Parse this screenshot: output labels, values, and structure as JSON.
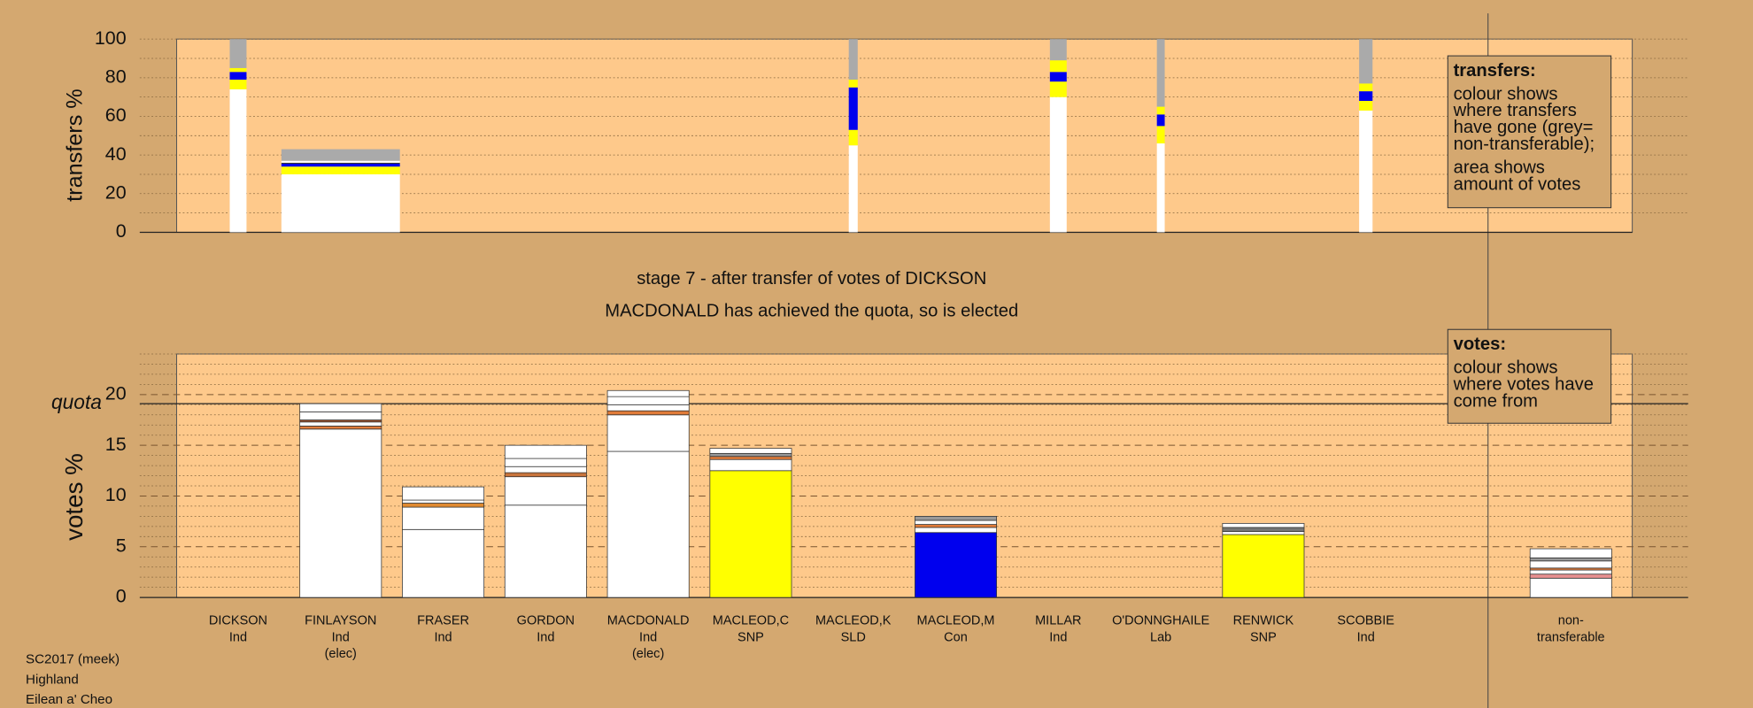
{
  "title": "stage 7 - after transfer of votes of DICKSON",
  "subtitle": "MACDONALD has achieved the quota, so is elected",
  "footer": [
    "SC2017 (meek)",
    "Highland",
    "Eilean a' Cheo"
  ],
  "chart_data": [
    {
      "type": "bar",
      "stacked": true,
      "ylabel": "transfers %",
      "ylim": [
        0,
        100
      ],
      "yticks": [
        0,
        20,
        40,
        60,
        80,
        100
      ],
      "minor_yticks": [
        10,
        30,
        50,
        70,
        90
      ],
      "stacks": [
        [
          {
            "value": 74,
            "color": "#ffffff"
          },
          {
            "value": 5,
            "color": "#ffff00"
          },
          {
            "value": 4,
            "color": "#0000ee"
          },
          {
            "value": 2,
            "color": "#ffff00"
          },
          {
            "value": 15,
            "color": "#aaaaaa"
          }
        ],
        [
          {
            "value": 30,
            "color": "#ffffff"
          },
          {
            "value": 4,
            "color": "#ffff00"
          },
          {
            "value": 1.5,
            "color": "#0000ee"
          },
          {
            "value": 0.5,
            "color": "#333333"
          },
          {
            "value": 1,
            "color": "#ffffff"
          },
          {
            "value": 6,
            "color": "#aaaaaa"
          }
        ],
        [],
        [],
        [],
        [],
        [
          {
            "value": 45,
            "color": "#ffffff"
          },
          {
            "value": 8,
            "color": "#ffff00"
          },
          {
            "value": 22,
            "color": "#0000ee"
          },
          {
            "value": 4,
            "color": "#ffff00"
          },
          {
            "value": 21,
            "color": "#aaaaaa"
          }
        ],
        [],
        [
          {
            "value": 70,
            "color": "#ffffff"
          },
          {
            "value": 8,
            "color": "#ffff00"
          },
          {
            "value": 5,
            "color": "#0000ee"
          },
          {
            "value": 6,
            "color": "#ffff00"
          },
          {
            "value": 11,
            "color": "#aaaaaa"
          }
        ],
        [
          {
            "value": 46,
            "color": "#ffffff"
          },
          {
            "value": 9,
            "color": "#ffff00"
          },
          {
            "value": 6,
            "color": "#0000ee"
          },
          {
            "value": 4,
            "color": "#ffff00"
          },
          {
            "value": 35,
            "color": "#aaaaaa"
          }
        ],
        [],
        [
          {
            "value": 63,
            "color": "#ffffff"
          },
          {
            "value": 5,
            "color": "#ffff00"
          },
          {
            "value": 5,
            "color": "#0000ee"
          },
          {
            "value": 4,
            "color": "#ffff00"
          },
          {
            "value": 23,
            "color": "#aaaaaa"
          }
        ],
        [],
        []
      ],
      "legend": {
        "title": "transfers:",
        "text": [
          "colour shows where transfers have gone (grey= non-transferable);",
          "area shows amount of votes"
        ]
      }
    },
    {
      "type": "bar",
      "stacked": true,
      "ylabel": "votes %",
      "ylim": [
        0,
        24
      ],
      "yticks": [
        0,
        5,
        10,
        15,
        20
      ],
      "minor_yticks": [
        1,
        2,
        3,
        4,
        6,
        7,
        8,
        9,
        11,
        12,
        13,
        14,
        16,
        17,
        18,
        19,
        21,
        22,
        23,
        24
      ],
      "quota": {
        "label": "quota",
        "value": 19.1
      },
      "categories": [
        "DICKSON",
        "FINLAYSON",
        "FRASER",
        "GORDON",
        "MACDONALD",
        "MACLEOD,C",
        "MACLEOD,K",
        "MACLEOD,M",
        "MILLAR",
        "O'DONNGHAILE",
        "RENWICK",
        "SCOBBIE",
        null,
        "non-transferable"
      ],
      "parties": [
        "Ind",
        "Ind",
        "Ind",
        "Ind",
        "Ind",
        "SNP",
        "SLD",
        "Con",
        "Ind",
        "Lab",
        "SNP",
        "Ind",
        null,
        null
      ],
      "notes": [
        null,
        "(elec)",
        null,
        null,
        "(elec)",
        null,
        null,
        null,
        null,
        null,
        null,
        null,
        null,
        null
      ],
      "stacks": [
        [],
        [
          {
            "value": 16.6,
            "color": "#ffffff"
          },
          {
            "value": 0.3,
            "color": "#e07b39"
          },
          {
            "value": 0.4,
            "color": "#ffffff"
          },
          {
            "value": 0.2,
            "color": "#a0522d"
          },
          {
            "value": 0.8,
            "color": "#ffffff"
          },
          {
            "value": 0.8,
            "color": "#ffffff"
          }
        ],
        [
          {
            "value": 6.7,
            "color": "#ffffff"
          },
          {
            "value": 2.2,
            "color": "#ffffff"
          },
          {
            "value": 0.4,
            "color": "#e08a30"
          },
          {
            "value": 0.3,
            "color": "#ffffff"
          },
          {
            "value": 1.3,
            "color": "#ffffff"
          }
        ],
        [
          {
            "value": 9.1,
            "color": "#ffffff"
          },
          {
            "value": 2.8,
            "color": "#ffffff"
          },
          {
            "value": 0.4,
            "color": "#c8743c"
          },
          {
            "value": 0.6,
            "color": "#ffffff"
          },
          {
            "value": 0.8,
            "color": "#ffffff"
          },
          {
            "value": 1.3,
            "color": "#ffffff"
          }
        ],
        [
          {
            "value": 14.4,
            "color": "#ffffff"
          },
          {
            "value": 3.6,
            "color": "#ffffff"
          },
          {
            "value": 0.4,
            "color": "#e07b39"
          },
          {
            "value": 0.6,
            "color": "#ffffff"
          },
          {
            "value": 0.8,
            "color": "#ffffff"
          },
          {
            "value": 0.6,
            "color": "#ffffff"
          }
        ],
        [
          {
            "value": 12.5,
            "color": "#ffff00"
          },
          {
            "value": 1.1,
            "color": "#ffffff"
          },
          {
            "value": 0.3,
            "color": "#e07b39"
          },
          {
            "value": 0.3,
            "color": "#999999"
          },
          {
            "value": 0.5,
            "color": "#ffffff"
          }
        ],
        [],
        [
          {
            "value": 6.4,
            "color": "#0000ee"
          },
          {
            "value": 0.5,
            "color": "#ffffff"
          },
          {
            "value": 0.3,
            "color": "#e07b39"
          },
          {
            "value": 0.4,
            "color": "#ffffff"
          },
          {
            "value": 0.4,
            "color": "#999999"
          }
        ],
        [],
        [],
        [
          {
            "value": 6.2,
            "color": "#ffff00"
          },
          {
            "value": 0.3,
            "color": "#ffffff"
          },
          {
            "value": 0.4,
            "color": "#777777"
          },
          {
            "value": 0.4,
            "color": "#ffffff"
          }
        ],
        [],
        [],
        [
          {
            "value": 1.9,
            "color": "#ffffff"
          },
          {
            "value": 0.4,
            "color": "#e79090"
          },
          {
            "value": 0.4,
            "color": "#ffffff"
          },
          {
            "value": 0.2,
            "color": "#e07b39"
          },
          {
            "value": 0.7,
            "color": "#ffffff"
          },
          {
            "value": 0.3,
            "color": "#999999"
          },
          {
            "value": 0.9,
            "color": "#ffffff"
          }
        ]
      ],
      "legend": {
        "title": "votes:",
        "text": [
          "colour shows where votes have come from"
        ]
      }
    }
  ]
}
